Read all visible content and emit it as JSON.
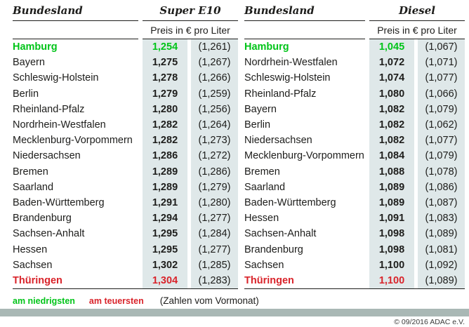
{
  "page": {
    "copyright": "© 09/2016 ADAC e.V."
  },
  "colors": {
    "green": "#00c418",
    "red": "#d9232a",
    "cell_bg": "#dfe8e9",
    "bar": "#a9b8b5",
    "text": "#1d1d1b"
  },
  "legend": {
    "lowest": "am niedrigsten",
    "highest": "am teuersten",
    "note": "(Zahlen vom Vormonat)"
  },
  "tables": [
    {
      "land_header": "Bundesland",
      "fuel_header": "Super E10",
      "price_header": "Preis in € pro Liter",
      "rows": [
        {
          "land": "Hamburg",
          "price": "1,254",
          "prev": "(1,261)",
          "highlight": "green"
        },
        {
          "land": "Bayern",
          "price": "1,275",
          "prev": "(1,267)",
          "highlight": ""
        },
        {
          "land": "Schleswig-Holstein",
          "price": "1,278",
          "prev": "(1,266)",
          "highlight": ""
        },
        {
          "land": "Berlin",
          "price": "1,279",
          "prev": "(1,259)",
          "highlight": ""
        },
        {
          "land": "Rheinland-Pfalz",
          "price": "1,280",
          "prev": "(1,256)",
          "highlight": ""
        },
        {
          "land": "Nordrhein-Westfalen",
          "price": "1,282",
          "prev": "(1,264)",
          "highlight": ""
        },
        {
          "land": "Mecklenburg-Vorpommern",
          "price": "1,282",
          "prev": "(1,273)",
          "highlight": ""
        },
        {
          "land": "Niedersachsen",
          "price": "1,286",
          "prev": "(1,272)",
          "highlight": ""
        },
        {
          "land": "Bremen",
          "price": "1,289",
          "prev": "(1,286)",
          "highlight": ""
        },
        {
          "land": "Saarland",
          "price": "1,289",
          "prev": "(1,279)",
          "highlight": ""
        },
        {
          "land": "Baden-Württemberg",
          "price": "1,291",
          "prev": "(1,280)",
          "highlight": ""
        },
        {
          "land": "Brandenburg",
          "price": "1,294",
          "prev": "(1,277)",
          "highlight": ""
        },
        {
          "land": "Sachsen-Anhalt",
          "price": "1,295",
          "prev": "(1,284)",
          "highlight": ""
        },
        {
          "land": "Hessen",
          "price": "1,295",
          "prev": "(1,277)",
          "highlight": ""
        },
        {
          "land": "Sachsen",
          "price": "1,302",
          "prev": "(1,285)",
          "highlight": ""
        },
        {
          "land": "Thüringen",
          "price": "1,304",
          "prev": "(1,283)",
          "highlight": "red"
        }
      ]
    },
    {
      "land_header": "Bundesland",
      "fuel_header": "Diesel",
      "price_header": "Preis in € pro Liter",
      "rows": [
        {
          "land": "Hamburg",
          "price": "1,045",
          "prev": "(1,067)",
          "highlight": "green"
        },
        {
          "land": "Nordrhein-Westfalen",
          "price": "1,072",
          "prev": "(1,071)",
          "highlight": ""
        },
        {
          "land": "Schleswig-Holstein",
          "price": "1,074",
          "prev": "(1,077)",
          "highlight": ""
        },
        {
          "land": "Rheinland-Pfalz",
          "price": "1,080",
          "prev": "(1,066)",
          "highlight": ""
        },
        {
          "land": "Bayern",
          "price": "1,082",
          "prev": "(1,079)",
          "highlight": ""
        },
        {
          "land": "Berlin",
          "price": "1,082",
          "prev": "(1,062)",
          "highlight": ""
        },
        {
          "land": "Niedersachsen",
          "price": "1,082",
          "prev": "(1,077)",
          "highlight": ""
        },
        {
          "land": "Mecklenburg-Vorpommern",
          "price": "1,084",
          "prev": "(1,079)",
          "highlight": ""
        },
        {
          "land": "Bremen",
          "price": "1,088",
          "prev": "(1,078)",
          "highlight": ""
        },
        {
          "land": "Saarland",
          "price": "1,089",
          "prev": "(1,086)",
          "highlight": ""
        },
        {
          "land": "Baden-Württemberg",
          "price": "1,089",
          "prev": "(1,087)",
          "highlight": ""
        },
        {
          "land": "Hessen",
          "price": "1,091",
          "prev": "(1,083)",
          "highlight": ""
        },
        {
          "land": "Sachsen-Anhalt",
          "price": "1,098",
          "prev": "(1,089)",
          "highlight": ""
        },
        {
          "land": "Brandenburg",
          "price": "1,098",
          "prev": "(1,081)",
          "highlight": ""
        },
        {
          "land": "Sachsen",
          "price": "1,100",
          "prev": "(1,092)",
          "highlight": ""
        },
        {
          "land": "Thüringen",
          "price": "1,100",
          "prev": "(1,089)",
          "highlight": "red"
        }
      ]
    }
  ],
  "chart_data": [
    {
      "type": "table",
      "title": "Super E10 — Preis in € pro Liter",
      "columns": [
        "Bundesland",
        "Preis",
        "Vormonat"
      ],
      "categories": [
        "Hamburg",
        "Bayern",
        "Schleswig-Holstein",
        "Berlin",
        "Rheinland-Pfalz",
        "Nordrhein-Westfalen",
        "Mecklenburg-Vorpommern",
        "Niedersachsen",
        "Bremen",
        "Saarland",
        "Baden-Württemberg",
        "Brandenburg",
        "Sachsen-Anhalt",
        "Hessen",
        "Sachsen",
        "Thüringen"
      ],
      "series": [
        {
          "name": "Preis",
          "values": [
            1.254,
            1.275,
            1.278,
            1.279,
            1.28,
            1.282,
            1.282,
            1.286,
            1.289,
            1.289,
            1.291,
            1.294,
            1.295,
            1.295,
            1.302,
            1.304
          ]
        },
        {
          "name": "Vormonat",
          "values": [
            1.261,
            1.267,
            1.266,
            1.259,
            1.256,
            1.264,
            1.273,
            1.272,
            1.286,
            1.279,
            1.28,
            1.277,
            1.284,
            1.277,
            1.285,
            1.283
          ]
        }
      ],
      "annotations": [
        "am niedrigsten: Hamburg",
        "am teuersten: Thüringen"
      ]
    },
    {
      "type": "table",
      "title": "Diesel — Preis in € pro Liter",
      "columns": [
        "Bundesland",
        "Preis",
        "Vormonat"
      ],
      "categories": [
        "Hamburg",
        "Nordrhein-Westfalen",
        "Schleswig-Holstein",
        "Rheinland-Pfalz",
        "Bayern",
        "Berlin",
        "Niedersachsen",
        "Mecklenburg-Vorpommern",
        "Bremen",
        "Saarland",
        "Baden-Württemberg",
        "Hessen",
        "Sachsen-Anhalt",
        "Brandenburg",
        "Sachsen",
        "Thüringen"
      ],
      "series": [
        {
          "name": "Preis",
          "values": [
            1.045,
            1.072,
            1.074,
            1.08,
            1.082,
            1.082,
            1.082,
            1.084,
            1.088,
            1.089,
            1.089,
            1.091,
            1.098,
            1.098,
            1.1,
            1.1
          ]
        },
        {
          "name": "Vormonat",
          "values": [
            1.067,
            1.071,
            1.077,
            1.066,
            1.079,
            1.062,
            1.077,
            1.079,
            1.078,
            1.086,
            1.087,
            1.083,
            1.089,
            1.081,
            1.092,
            1.089
          ]
        }
      ],
      "annotations": [
        "am niedrigsten: Hamburg",
        "am teuersten: Thüringen"
      ]
    }
  ]
}
